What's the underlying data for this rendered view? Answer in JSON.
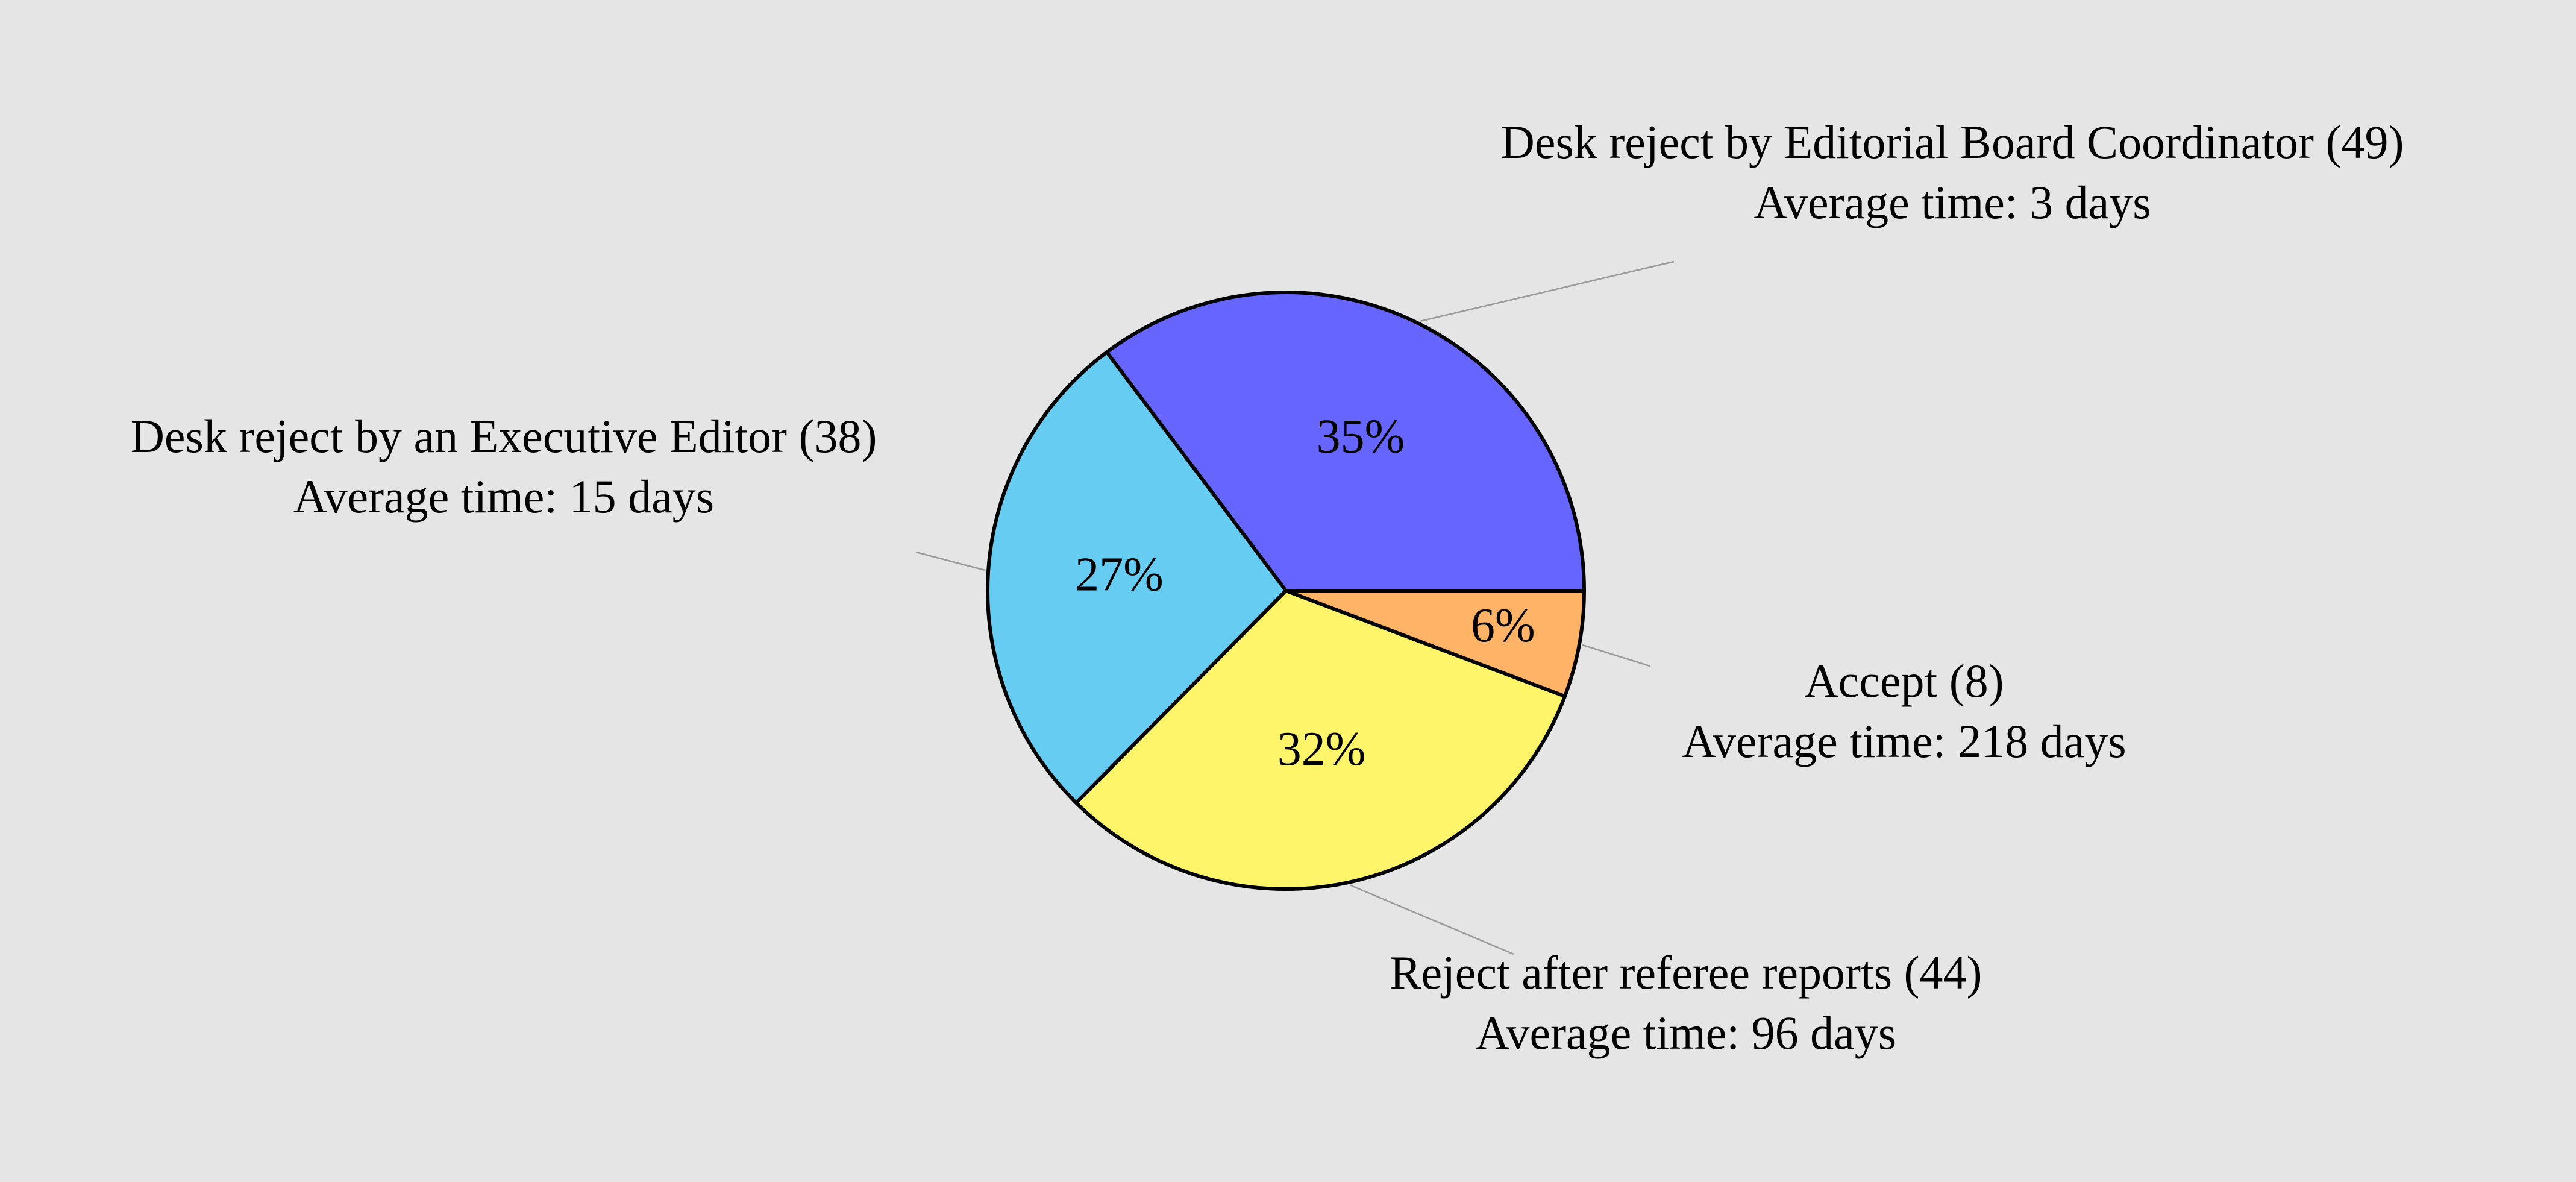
{
  "chart_data": {
    "type": "pie",
    "start_angle_deg": 0,
    "direction": "counterclockwise",
    "slices": [
      {
        "label": "Desk reject by Editorial Board Coordinator (49)",
        "detail": "Average time: 3 days",
        "value": 49,
        "percent_label": "35%",
        "color": "#6666ff"
      },
      {
        "label": "Desk reject by an Executive Editor (38)",
        "detail": "Average time: 15 days",
        "value": 38,
        "percent_label": "27%",
        "color": "#66ccf2"
      },
      {
        "label": "Reject after referee reports (44)",
        "detail": "Average time: 96 days",
        "value": 44,
        "percent_label": "32%",
        "color": "#fff56b"
      },
      {
        "label": "Accept (8)",
        "detail": "Average time: 218 days",
        "value": 8,
        "percent_label": "6%",
        "color": "#ffb366"
      }
    ],
    "background": "#e5e5e5",
    "leader_color": "#9a9a9a"
  }
}
